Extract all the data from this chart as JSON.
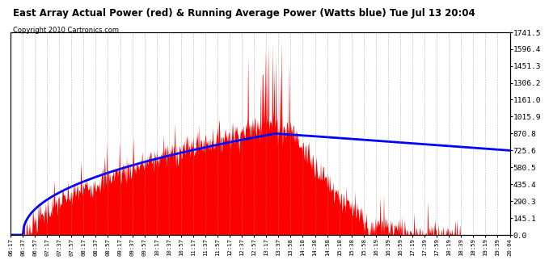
{
  "title": "East Array Actual Power (red) & Running Average Power (Watts blue) Tue Jul 13 20:04",
  "copyright_text": "Copyright 2010 Cartronics.com",
  "ylabel_right": [
    "1741.5",
    "1596.4",
    "1451.3",
    "1306.2",
    "1161.0",
    "1015.9",
    "870.8",
    "725.6",
    "580.5",
    "435.4",
    "290.3",
    "145.1",
    "0.0"
  ],
  "ylim": [
    0,
    1741.5
  ],
  "background_color": "#ffffff",
  "plot_bg_color": "#ffffff",
  "grid_color": "#888888",
  "bar_color": "#ff0000",
  "line_color": "#0000ff",
  "x_tick_labels": [
    "06:17",
    "06:37",
    "06:57",
    "07:17",
    "07:37",
    "07:57",
    "08:17",
    "08:37",
    "08:57",
    "09:17",
    "09:37",
    "09:57",
    "10:17",
    "10:37",
    "10:57",
    "11:17",
    "11:37",
    "11:57",
    "12:17",
    "12:37",
    "12:57",
    "13:17",
    "13:37",
    "13:58",
    "14:18",
    "14:38",
    "14:58",
    "15:18",
    "15:38",
    "15:58",
    "16:19",
    "16:39",
    "16:59",
    "17:19",
    "17:39",
    "17:59",
    "18:19",
    "18:39",
    "18:59",
    "19:19",
    "19:39",
    "20:04"
  ]
}
